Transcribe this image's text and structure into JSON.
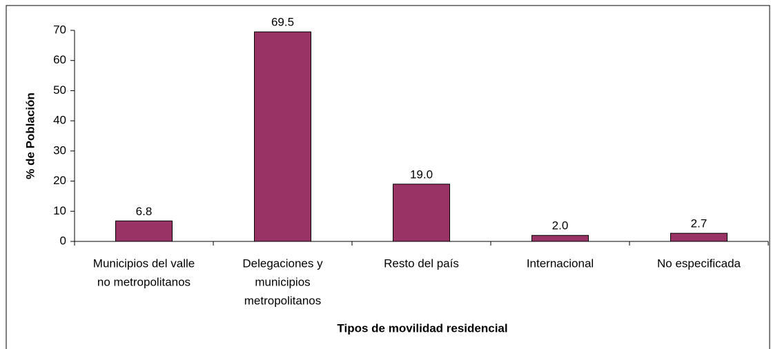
{
  "chart_data": {
    "type": "bar",
    "categories": [
      [
        "Municipios del valle",
        "no metropolitanos"
      ],
      [
        "Delegaciones y",
        "municipios",
        "metropolitanos"
      ],
      [
        "Resto del país"
      ],
      [
        "Internacional"
      ],
      [
        "No especificada"
      ]
    ],
    "values": [
      6.8,
      69.5,
      19.0,
      2.0,
      2.7
    ],
    "value_labels": [
      "6.8",
      "69.5",
      "19.0",
      "2.0",
      "2.7"
    ],
    "color": "#993366",
    "ylabel": "% de Población",
    "xlabel": "Tipos de movilidad residencial",
    "ylim": [
      0,
      70
    ],
    "yticks": [
      0,
      10,
      20,
      30,
      40,
      50,
      60,
      70
    ],
    "grid": false
  }
}
